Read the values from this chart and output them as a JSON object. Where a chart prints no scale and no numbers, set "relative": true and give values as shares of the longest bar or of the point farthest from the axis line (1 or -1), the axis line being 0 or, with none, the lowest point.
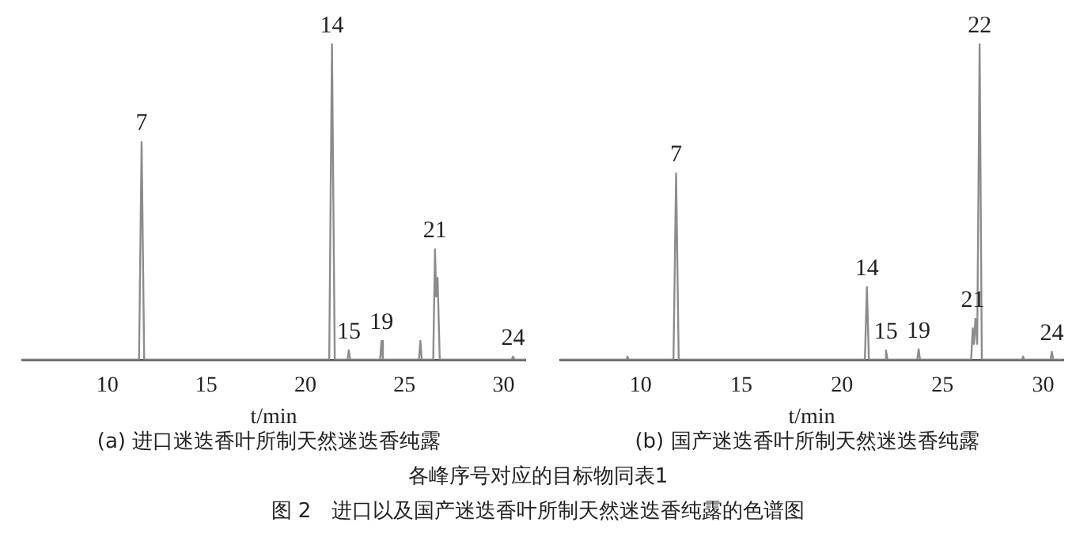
{
  "chart_data": [
    {
      "type": "line",
      "relative": true,
      "title": "(a) 进口迷迭香叶所制天然迷迭香纯露",
      "xlabel": "t/min",
      "xlim": [
        5.7,
        31.1
      ],
      "xticks": [
        10,
        15,
        20,
        25,
        30
      ],
      "grid": false,
      "legend": false,
      "marker": "none",
      "series": [
        {
          "color": "#8c8c8c",
          "x": [
            5.7,
            11.6,
            11.73,
            11.86,
            21.2,
            21.34,
            21.48,
            22.12,
            22.19,
            22.26,
            23.77,
            23.84,
            23.91,
            25.73,
            25.8,
            25.87,
            26.45,
            26.54,
            26.6,
            26.67,
            26.78,
            30.41,
            30.48,
            30.55,
            31.1
          ],
          "values": [
            0,
            0,
            0.69,
            0,
            0,
            1,
            0,
            0,
            0.03,
            0,
            0,
            0.06,
            0,
            0,
            0.06,
            0,
            0,
            0.35,
            0.2,
            0.26,
            0,
            0,
            0.01,
            0,
            0
          ]
        }
      ],
      "annotations": [
        {
          "text": "7",
          "x": 11.73,
          "y": 0.69
        },
        {
          "text": "14",
          "x": 21.34,
          "y": 1
        },
        {
          "text": "15",
          "x": 22.19,
          "y": 0.03
        },
        {
          "text": "19",
          "x": 23.84,
          "y": 0.06
        },
        {
          "text": "21",
          "x": 26.54,
          "y": 0.35
        },
        {
          "text": "24",
          "x": 30.48,
          "y": 0.01
        },
        "各峰序号对应的目标物同表1",
        "图 2　进口以及国产迷迭香叶所制天然迷迭香纯露的色谱图"
      ]
    },
    {
      "type": "line",
      "relative": true,
      "title": "(b) 国产迷迭香叶所制天然迷迭香纯露",
      "xlabel": "t/min",
      "xlim": [
        6.0,
        31.0
      ],
      "xticks": [
        10,
        15,
        20,
        25,
        30
      ],
      "grid": false,
      "legend": false,
      "marker": "none",
      "series": [
        {
          "color": "#8c8c8c",
          "x": [
            6.0,
            9.3,
            9.35,
            9.4,
            11.63,
            11.76,
            11.89,
            21.14,
            21.24,
            21.34,
            22.12,
            22.19,
            22.26,
            23.74,
            23.81,
            23.88,
            26.42,
            26.5,
            26.56,
            26.63,
            26.72,
            26.84,
            26.95,
            28.95,
            29.0,
            29.05,
            30.36,
            30.43,
            30.5,
            31.0
          ],
          "values": [
            0,
            0,
            0.01,
            0,
            0,
            0.59,
            0,
            0,
            0.23,
            0,
            0,
            0.03,
            0,
            0,
            0.033,
            0,
            0,
            0.1,
            0.05,
            0.13,
            0.05,
            1,
            0,
            0,
            0.01,
            0,
            0,
            0.025,
            0,
            0
          ]
        }
      ],
      "annotations": [
        {
          "text": "7",
          "x": 11.76,
          "y": 0.59
        },
        {
          "text": "14",
          "x": 21.24,
          "y": 0.23
        },
        {
          "text": "15",
          "x": 22.19,
          "y": 0.03
        },
        {
          "text": "19",
          "x": 23.81,
          "y": 0.033
        },
        {
          "text": "21",
          "x": 26.5,
          "y": 0.13
        },
        {
          "text": "22",
          "x": 26.84,
          "y": 1
        },
        {
          "text": "24",
          "x": 30.43,
          "y": 0.025
        }
      ]
    }
  ]
}
